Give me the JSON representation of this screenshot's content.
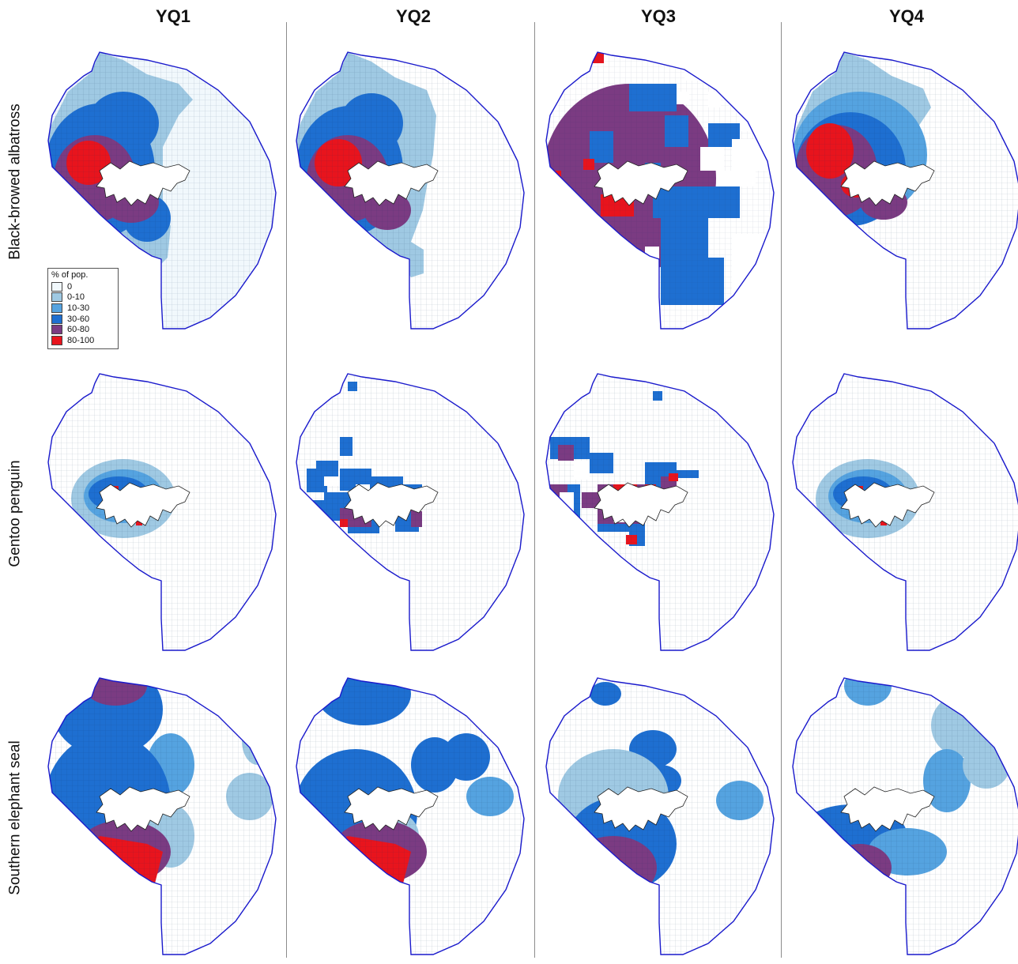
{
  "columns": [
    "YQ1",
    "YQ2",
    "YQ3",
    "YQ4"
  ],
  "rows": [
    "Black-browed albatross",
    "Gentoo penguin",
    "Southern elephant seal"
  ],
  "legend": {
    "title": "% of pop.",
    "items": [
      {
        "label": "0",
        "color": "#f1f8fc"
      },
      {
        "label": "0-10",
        "color": "#9fc9e3"
      },
      {
        "label": "10-30",
        "color": "#55a3e0"
      },
      {
        "label": "30-60",
        "color": "#1e6fd1"
      },
      {
        "label": "60-80",
        "color": "#7b3b82"
      },
      {
        "label": "80-100",
        "color": "#e8141d"
      }
    ]
  },
  "colors": {
    "outline": "#1a1acc",
    "island": "#ffffff",
    "island_edge": "#222222",
    "divider": "#8c8c8c"
  }
}
